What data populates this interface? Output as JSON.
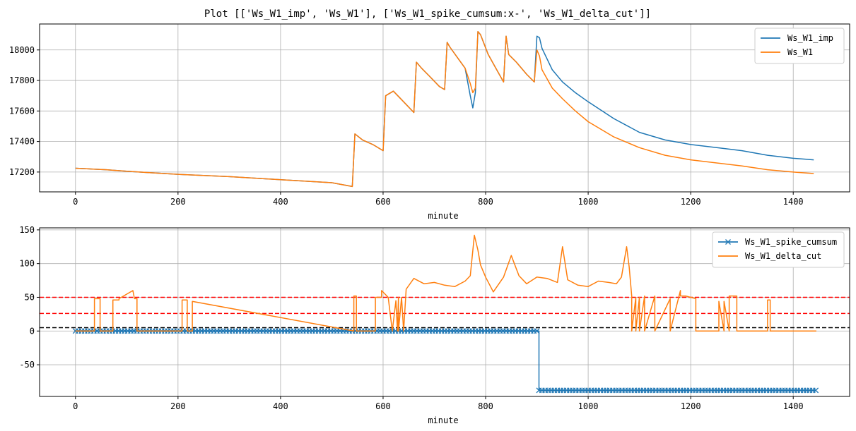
{
  "chart_data": [
    {
      "type": "line",
      "title": "Plot [['Ws_W1_imp', 'Ws_W1'], ['Ws_W1_spike_cumsum:x-', 'Ws_W1_delta_cut']]",
      "xlabel": "minute",
      "ylabel": "",
      "xlim": [
        -70,
        1510
      ],
      "ylim": [
        17070,
        18170
      ],
      "xticks": [
        0,
        200,
        400,
        600,
        800,
        1000,
        1200,
        1400
      ],
      "yticks": [
        17200,
        17400,
        17600,
        17800,
        18000
      ],
      "grid": true,
      "legend": "top-right",
      "series": [
        {
          "name": "Ws_W1_imp",
          "color": "#1f77b4",
          "x": [
            0,
            60,
            100,
            150,
            200,
            300,
            400,
            450,
            500,
            540,
            545,
            560,
            580,
            600,
            605,
            620,
            640,
            660,
            665,
            675,
            690,
            710,
            720,
            725,
            730,
            745,
            760,
            770,
            775,
            780,
            785,
            790,
            805,
            820,
            835,
            840,
            845,
            860,
            880,
            895,
            900,
            905,
            910,
            930,
            950,
            975,
            1000,
            1050,
            1100,
            1150,
            1200,
            1300,
            1350,
            1400,
            1440
          ],
          "y": [
            17225,
            17215,
            17205,
            17195,
            17185,
            17170,
            17150,
            17140,
            17130,
            17105,
            17450,
            17410,
            17380,
            17340,
            17700,
            17730,
            17660,
            17590,
            17920,
            17880,
            17830,
            17760,
            17740,
            18050,
            18020,
            17950,
            17880,
            17700,
            17620,
            17720,
            18120,
            18100,
            17970,
            17880,
            17790,
            18090,
            17970,
            17920,
            17840,
            17790,
            18090,
            18080,
            18010,
            17870,
            17790,
            17720,
            17660,
            17550,
            17460,
            17410,
            17380,
            17340,
            17310,
            17290,
            17280
          ]
        },
        {
          "name": "Ws_W1",
          "color": "#ff7f0e",
          "x": [
            0,
            60,
            100,
            150,
            200,
            300,
            400,
            450,
            500,
            540,
            545,
            560,
            580,
            600,
            605,
            620,
            640,
            660,
            665,
            675,
            690,
            710,
            720,
            725,
            730,
            745,
            760,
            770,
            775,
            780,
            785,
            790,
            805,
            820,
            835,
            840,
            845,
            860,
            880,
            895,
            900,
            905,
            910,
            930,
            950,
            975,
            1000,
            1050,
            1100,
            1150,
            1200,
            1300,
            1350,
            1400,
            1440
          ],
          "y": [
            17225,
            17215,
            17205,
            17195,
            17185,
            17170,
            17150,
            17140,
            17130,
            17105,
            17450,
            17410,
            17380,
            17340,
            17700,
            17730,
            17660,
            17590,
            17920,
            17880,
            17830,
            17760,
            17740,
            18050,
            18020,
            17950,
            17880,
            17780,
            17720,
            17750,
            18120,
            18100,
            17970,
            17880,
            17790,
            18090,
            17970,
            17920,
            17840,
            17790,
            18000,
            17960,
            17870,
            17750,
            17680,
            17600,
            17530,
            17430,
            17360,
            17310,
            17280,
            17240,
            17215,
            17200,
            17190
          ]
        }
      ]
    },
    {
      "type": "line",
      "title": "",
      "xlabel": "minute",
      "ylabel": "",
      "xlim": [
        -70,
        1510
      ],
      "ylim": [
        -97,
        153
      ],
      "xticks": [
        0,
        200,
        400,
        600,
        800,
        1000,
        1200,
        1400
      ],
      "yticks": [
        -50,
        0,
        50,
        100,
        150
      ],
      "grid": true,
      "legend": "top-right",
      "hlines": [
        {
          "y": 50,
          "color": "#ff0000",
          "style": "dashed"
        },
        {
          "y": 26,
          "color": "#ff0000",
          "style": "dashed"
        },
        {
          "y": 5,
          "color": "#000000",
          "style": "dashed"
        }
      ],
      "series": [
        {
          "name": "Ws_W1_spike_cumsum",
          "color": "#1f77b4",
          "marker": "x",
          "x": [
            0,
            904,
            904,
            1445
          ],
          "y": [
            0,
            0,
            -88,
            -88
          ]
        },
        {
          "name": "Ws_W1_delta_cut",
          "color": "#ff7f0e",
          "x": [
            0,
            37,
            37,
            48,
            48,
            73,
            73,
            85,
            85,
            112,
            115,
            120,
            120,
            208,
            208,
            218,
            218,
            228,
            228,
            543,
            543,
            548,
            548,
            585,
            585,
            597,
            597,
            610,
            618,
            625,
            628,
            630,
            630,
            636,
            640,
            640,
            645,
            660,
            680,
            700,
            720,
            740,
            760,
            770,
            778,
            785,
            790,
            800,
            815,
            835,
            850,
            865,
            880,
            900,
            920,
            940,
            950,
            960,
            980,
            1000,
            1020,
            1040,
            1055,
            1065,
            1075,
            1080,
            1085,
            1085,
            1093,
            1093,
            1100,
            1100,
            1110,
            1110,
            1130,
            1130,
            1160,
            1160,
            1180,
            1180,
            1190,
            1210,
            1210,
            1255,
            1255,
            1265,
            1265,
            1275,
            1275,
            1290,
            1290,
            1350,
            1350,
            1355,
            1355,
            1445
          ],
          "y": [
            0,
            0,
            48,
            48,
            0,
            0,
            46,
            46,
            48,
            60,
            48,
            48,
            0,
            0,
            46,
            46,
            0,
            0,
            44,
            0,
            52,
            52,
            0,
            0,
            50,
            50,
            60,
            50,
            0,
            45,
            0,
            50,
            0,
            50,
            0,
            0,
            62,
            78,
            70,
            72,
            68,
            66,
            74,
            82,
            142,
            120,
            98,
            80,
            58,
            80,
            112,
            82,
            70,
            80,
            78,
            72,
            125,
            76,
            68,
            66,
            74,
            72,
            70,
            80,
            125,
            95,
            52,
            0,
            50,
            0,
            50,
            0,
            52,
            0,
            52,
            0,
            48,
            0,
            60,
            52,
            52,
            48,
            0,
            0,
            44,
            0,
            44,
            0,
            52,
            52,
            0,
            0,
            46,
            46,
            0,
            0
          ]
        }
      ]
    }
  ]
}
